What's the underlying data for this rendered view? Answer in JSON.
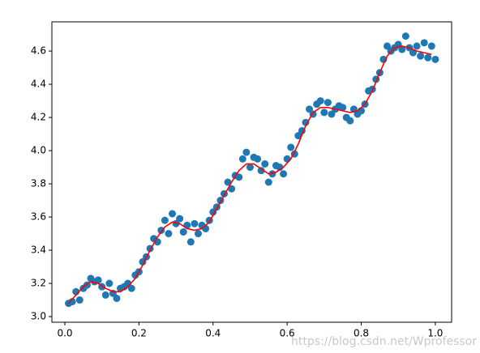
{
  "chart_data": {
    "type": "scatter",
    "xlim": [
      -0.035,
      1.044
    ],
    "ylim": [
      2.966,
      4.776
    ],
    "xticks": [
      {
        "value": 0,
        "label": "0.0"
      },
      0.2,
      0.4,
      0.6,
      0.8,
      {
        "value": 1,
        "label": "1.0"
      }
    ],
    "yticks": [
      {
        "value": 3,
        "label": "3.0"
      },
      3.2,
      3.4,
      3.6,
      3.8,
      {
        "value": 4,
        "label": "4.0"
      },
      4.2,
      4.4,
      4.6
    ],
    "color": "#1f77b4",
    "x": [
      0.01,
      0.02,
      0.03,
      0.04,
      0.05,
      0.06,
      0.07,
      0.08,
      0.09,
      0.1,
      0.11,
      0.12,
      0.13,
      0.14,
      0.15,
      0.16,
      0.17,
      0.18,
      0.19,
      0.2,
      0.21,
      0.22,
      0.23,
      0.24,
      0.25,
      0.26,
      0.27,
      0.28,
      0.29,
      0.3,
      0.31,
      0.32,
      0.33,
      0.34,
      0.35,
      0.36,
      0.37,
      0.38,
      0.39,
      0.4,
      0.41,
      0.42,
      0.43,
      0.44,
      0.45,
      0.46,
      0.47,
      0.48,
      0.49,
      0.5,
      0.51,
      0.52,
      0.53,
      0.54,
      0.55,
      0.56,
      0.57,
      0.58,
      0.59,
      0.6,
      0.61,
      0.62,
      0.63,
      0.64,
      0.65,
      0.66,
      0.67,
      0.68,
      0.69,
      0.7,
      0.71,
      0.72,
      0.73,
      0.74,
      0.75,
      0.76,
      0.77,
      0.78,
      0.79,
      0.8,
      0.81,
      0.82,
      0.83,
      0.84,
      0.85,
      0.86,
      0.87,
      0.88,
      0.89,
      0.9,
      0.91,
      0.92,
      0.93,
      0.94,
      0.95,
      0.96,
      0.97,
      0.98,
      0.99,
      1.0
    ],
    "values": [
      3.08,
      3.09,
      3.15,
      3.1,
      3.17,
      3.19,
      3.23,
      3.21,
      3.22,
      3.18,
      3.13,
      3.2,
      3.14,
      3.11,
      3.17,
      3.18,
      3.2,
      3.17,
      3.25,
      3.27,
      3.33,
      3.36,
      3.41,
      3.47,
      3.45,
      3.52,
      3.58,
      3.5,
      3.62,
      3.56,
      3.59,
      3.51,
      3.55,
      3.45,
      3.56,
      3.5,
      3.55,
      3.53,
      3.58,
      3.63,
      3.66,
      3.7,
      3.74,
      3.81,
      3.77,
      3.85,
      3.84,
      3.95,
      3.99,
      3.9,
      3.96,
      3.95,
      3.88,
      3.92,
      3.81,
      3.86,
      3.91,
      3.9,
      3.86,
      3.95,
      4.02,
      3.98,
      4.09,
      4.12,
      4.17,
      4.25,
      4.22,
      4.28,
      4.3,
      4.23,
      4.29,
      4.22,
      4.25,
      4.27,
      4.26,
      4.2,
      4.18,
      4.25,
      4.22,
      4.24,
      4.28,
      4.36,
      4.37,
      4.43,
      4.47,
      4.55,
      4.63,
      4.6,
      4.62,
      4.64,
      4.61,
      4.69,
      4.62,
      4.59,
      4.63,
      4.57,
      4.65,
      4.56,
      4.63,
      4.55
    ],
    "line": {
      "color": "#ff0000",
      "x": [
        0.01,
        0.03,
        0.05,
        0.07,
        0.09,
        0.11,
        0.13,
        0.15,
        0.17,
        0.19,
        0.21,
        0.23,
        0.25,
        0.27,
        0.29,
        0.31,
        0.33,
        0.35,
        0.37,
        0.39,
        0.41,
        0.43,
        0.45,
        0.47,
        0.49,
        0.51,
        0.53,
        0.55,
        0.57,
        0.59,
        0.61,
        0.63,
        0.65,
        0.67,
        0.69,
        0.71,
        0.73,
        0.75,
        0.77,
        0.79,
        0.81,
        0.83,
        0.85,
        0.87,
        0.89,
        0.91,
        0.93,
        0.95,
        0.97,
        0.99
      ],
      "values": [
        3.08,
        3.13,
        3.18,
        3.21,
        3.2,
        3.17,
        3.15,
        3.15,
        3.18,
        3.23,
        3.31,
        3.4,
        3.48,
        3.54,
        3.57,
        3.56,
        3.53,
        3.52,
        3.53,
        3.57,
        3.65,
        3.73,
        3.81,
        3.88,
        3.92,
        3.92,
        3.89,
        3.86,
        3.87,
        3.9,
        3.95,
        4.04,
        4.15,
        4.23,
        4.26,
        4.26,
        4.25,
        4.24,
        4.23,
        4.24,
        4.28,
        4.36,
        4.47,
        4.57,
        4.62,
        4.63,
        4.62,
        4.6,
        4.59,
        4.58
      ]
    },
    "watermark": "https://blog.csdn.net/Wprofessor"
  }
}
